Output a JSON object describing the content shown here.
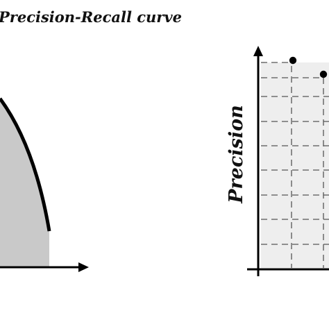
{
  "title": "Precision-Recall  curve",
  "right_panel": {
    "ylabel": "Precision"
  },
  "colors": {
    "ink": "#000000",
    "area_fill": "#c9c9c9",
    "grid_area_fill": "#eeeeee",
    "grid_dash": "#555555"
  }
}
